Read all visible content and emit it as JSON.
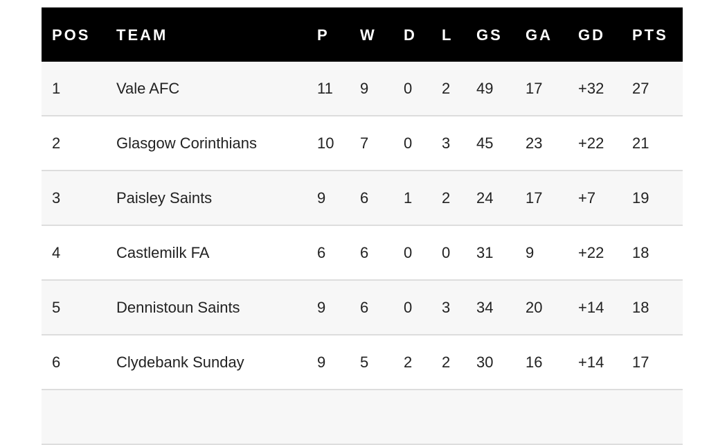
{
  "table": {
    "headers": [
      "POS",
      "TEAM",
      "P",
      "W",
      "D",
      "L",
      "GS",
      "GA",
      "GD",
      "PTS"
    ],
    "rows": [
      [
        "1",
        "Vale AFC",
        "11",
        "9",
        "0",
        "2",
        "49",
        "17",
        "+32",
        "27"
      ],
      [
        "2",
        "Glasgow Corinthians",
        "10",
        "7",
        "0",
        "3",
        "45",
        "23",
        "+22",
        "21"
      ],
      [
        "3",
        "Paisley Saints",
        "9",
        "6",
        "1",
        "2",
        "24",
        "17",
        "+7",
        "19"
      ],
      [
        "4",
        "Castlemilk FA",
        "6",
        "6",
        "0",
        "0",
        "31",
        "9",
        "+22",
        "18"
      ],
      [
        "5",
        "Dennistoun Saints",
        "9",
        "6",
        "0",
        "3",
        "34",
        "20",
        "+14",
        "18"
      ],
      [
        "6",
        "Clydebank Sunday",
        "9",
        "5",
        "2",
        "2",
        "30",
        "16",
        "+14",
        "17"
      ]
    ]
  }
}
